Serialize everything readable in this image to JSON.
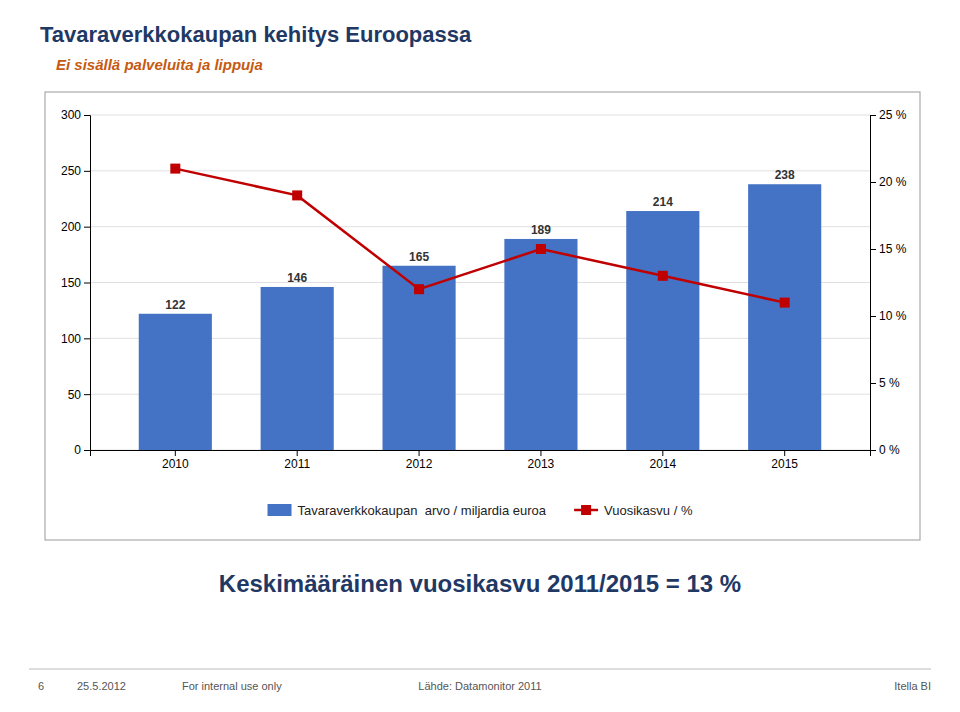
{
  "chart_data": {
    "type": "bar",
    "title": "Tavaraverkkokaupan kehitys Euroopassa",
    "subtitle": "Ei sisällä palveluita ja lippuja",
    "categories": [
      "2010",
      "2011",
      "2012",
      "2013",
      "2014",
      "2015"
    ],
    "series": [
      {
        "name": "Tavaraverkkokaupan  arvo / miljardia euroa",
        "type": "bar",
        "color": "#4472C4",
        "values": [
          122,
          146,
          165,
          189,
          214,
          238
        ],
        "data_labels": true
      },
      {
        "name": "Vuosikasvu / %",
        "type": "line",
        "color": "#C00000",
        "marker": "square",
        "axis": "y2",
        "values": [
          21.0,
          19.0,
          12.0,
          15.0,
          13.0,
          11.0
        ]
      }
    ],
    "ylim": [
      0,
      300
    ],
    "yticks": [
      0,
      50,
      100,
      150,
      200,
      250,
      300
    ],
    "y2lim": [
      0,
      25
    ],
    "y2ticks": [
      {
        "value": 0,
        "label": "0 %"
      },
      {
        "value": 5,
        "label": "5 %"
      },
      {
        "value": 10,
        "label": "10 %"
      },
      {
        "value": 15,
        "label": "15 %"
      },
      {
        "value": 20,
        "label": "20 %"
      },
      {
        "value": 25,
        "label": "25 %"
      }
    ],
    "grid": true,
    "legend": "bottom",
    "annotations": [
      "Keskimääräinen vuosikasvu 2011/2015 = 13 %",
      "6",
      "25.5.2012",
      "For internal use only",
      "Lähde: Datamonitor 2011",
      "Itella BI"
    ]
  }
}
